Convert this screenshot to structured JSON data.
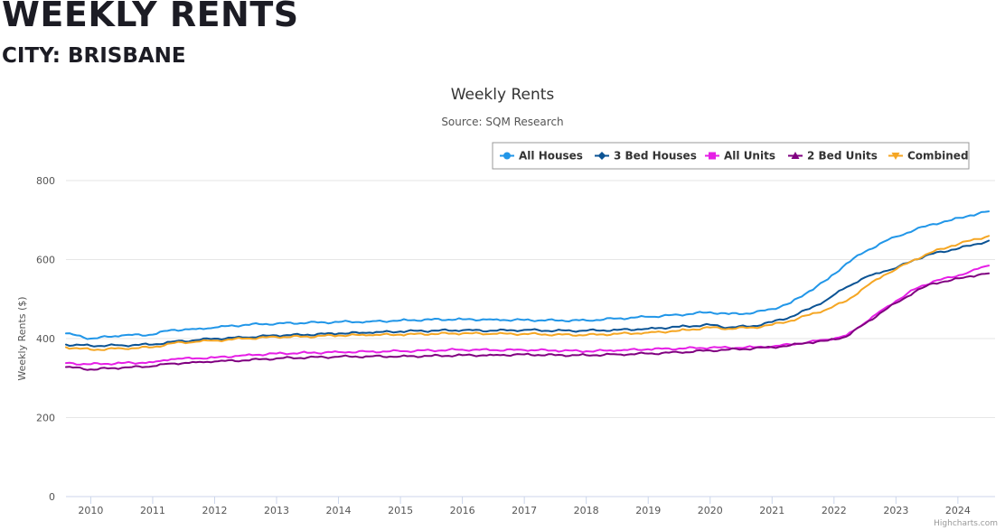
{
  "header": {
    "heading": "WEEKLY RENTS",
    "subheading": "CITY: BRISBANE"
  },
  "chart_data": {
    "type": "line",
    "title": "Weekly Rents",
    "subtitle": "Source: SQM Research",
    "ylabel": "Weekly Rents ($)",
    "xlabel": "",
    "ylim": [
      0,
      800
    ],
    "yticks": [
      0,
      200,
      400,
      600,
      800
    ],
    "xlim": [
      2009.6,
      2024.6
    ],
    "xticks": [
      "2010",
      "2011",
      "2012",
      "2013",
      "2014",
      "2015",
      "2016",
      "2017",
      "2018",
      "2019",
      "2020",
      "2021",
      "2022",
      "2023",
      "2024"
    ],
    "grid": true,
    "legend_position": "top-right",
    "credits": "Highcharts.com",
    "series": [
      {
        "name": "All Houses",
        "color": "#2196e8",
        "marker": "circle",
        "points": [
          [
            2009.6,
            413
          ],
          [
            2010,
            400
          ],
          [
            2010.5,
            408
          ],
          [
            2011,
            410
          ],
          [
            2011.3,
            422
          ],
          [
            2011.7,
            424
          ],
          [
            2012,
            428
          ],
          [
            2012.5,
            435
          ],
          [
            2013,
            438
          ],
          [
            2013.5,
            440
          ],
          [
            2014,
            442
          ],
          [
            2014.5,
            443
          ],
          [
            2015,
            446
          ],
          [
            2015.5,
            448
          ],
          [
            2016,
            449
          ],
          [
            2016.5,
            448
          ],
          [
            2017,
            447
          ],
          [
            2017.5,
            446
          ],
          [
            2018,
            446
          ],
          [
            2018.5,
            451
          ],
          [
            2019,
            455
          ],
          [
            2019.5,
            460
          ],
          [
            2020,
            467
          ],
          [
            2020.3,
            462
          ],
          [
            2020.7,
            465
          ],
          [
            2021,
            475
          ],
          [
            2021.3,
            490
          ],
          [
            2021.6,
            520
          ],
          [
            2021.9,
            550
          ],
          [
            2022.2,
            590
          ],
          [
            2022.5,
            620
          ],
          [
            2022.8,
            645
          ],
          [
            2023,
            658
          ],
          [
            2023.3,
            675
          ],
          [
            2023.6,
            690
          ],
          [
            2023.9,
            700
          ],
          [
            2024.2,
            712
          ],
          [
            2024.5,
            722
          ]
        ]
      },
      {
        "name": "3 Bed Houses",
        "color": "#0b5394",
        "marker": "diamond",
        "points": [
          [
            2009.6,
            385
          ],
          [
            2010,
            382
          ],
          [
            2010.5,
            383
          ],
          [
            2011,
            385
          ],
          [
            2011.3,
            392
          ],
          [
            2011.7,
            396
          ],
          [
            2012,
            400
          ],
          [
            2012.5,
            403
          ],
          [
            2013,
            408
          ],
          [
            2013.5,
            410
          ],
          [
            2014,
            413
          ],
          [
            2014.5,
            415
          ],
          [
            2015,
            418
          ],
          [
            2015.5,
            420
          ],
          [
            2016,
            421
          ],
          [
            2016.5,
            420
          ],
          [
            2017,
            422
          ],
          [
            2017.5,
            420
          ],
          [
            2018,
            420
          ],
          [
            2018.5,
            422
          ],
          [
            2019,
            425
          ],
          [
            2019.5,
            430
          ],
          [
            2020,
            435
          ],
          [
            2020.3,
            428
          ],
          [
            2020.7,
            432
          ],
          [
            2021,
            442
          ],
          [
            2021.3,
            455
          ],
          [
            2021.6,
            475
          ],
          [
            2021.9,
            500
          ],
          [
            2022.2,
            530
          ],
          [
            2022.5,
            555
          ],
          [
            2022.8,
            570
          ],
          [
            2023,
            578
          ],
          [
            2023.3,
            600
          ],
          [
            2023.6,
            615
          ],
          [
            2023.9,
            625
          ],
          [
            2024.2,
            635
          ],
          [
            2024.5,
            648
          ]
        ]
      },
      {
        "name": "All Units",
        "color": "#e61fe6",
        "marker": "square",
        "points": [
          [
            2009.6,
            338
          ],
          [
            2010,
            335
          ],
          [
            2010.5,
            338
          ],
          [
            2011,
            340
          ],
          [
            2011.3,
            348
          ],
          [
            2011.7,
            350
          ],
          [
            2012,
            352
          ],
          [
            2012.5,
            358
          ],
          [
            2013,
            362
          ],
          [
            2013.5,
            364
          ],
          [
            2014,
            366
          ],
          [
            2014.5,
            367
          ],
          [
            2015,
            368
          ],
          [
            2015.5,
            370
          ],
          [
            2016,
            372
          ],
          [
            2016.5,
            371
          ],
          [
            2017,
            371
          ],
          [
            2017.5,
            370
          ],
          [
            2018,
            368
          ],
          [
            2018.5,
            370
          ],
          [
            2019,
            373
          ],
          [
            2019.5,
            375
          ],
          [
            2020,
            377
          ],
          [
            2020.3,
            377
          ],
          [
            2020.7,
            378
          ],
          [
            2021,
            380
          ],
          [
            2021.3,
            385
          ],
          [
            2021.6,
            392
          ],
          [
            2021.9,
            397
          ],
          [
            2022.2,
            408
          ],
          [
            2022.5,
            440
          ],
          [
            2022.8,
            475
          ],
          [
            2023,
            495
          ],
          [
            2023.3,
            525
          ],
          [
            2023.6,
            545
          ],
          [
            2023.9,
            555
          ],
          [
            2024.2,
            570
          ],
          [
            2024.5,
            585
          ]
        ]
      },
      {
        "name": "2 Bed Units",
        "color": "#800080",
        "marker": "triangle",
        "points": [
          [
            2009.6,
            328
          ],
          [
            2010,
            322
          ],
          [
            2010.5,
            326
          ],
          [
            2011,
            330
          ],
          [
            2011.3,
            337
          ],
          [
            2011.7,
            340
          ],
          [
            2012,
            342
          ],
          [
            2012.5,
            345
          ],
          [
            2013,
            350
          ],
          [
            2013.5,
            352
          ],
          [
            2014,
            354
          ],
          [
            2014.5,
            355
          ],
          [
            2015,
            355
          ],
          [
            2015.5,
            356
          ],
          [
            2016,
            358
          ],
          [
            2016.5,
            358
          ],
          [
            2017,
            360
          ],
          [
            2017.5,
            358
          ],
          [
            2018,
            358
          ],
          [
            2018.5,
            360
          ],
          [
            2019,
            362
          ],
          [
            2019.5,
            365
          ],
          [
            2020,
            370
          ],
          [
            2020.3,
            372
          ],
          [
            2020.7,
            375
          ],
          [
            2021,
            378
          ],
          [
            2021.3,
            383
          ],
          [
            2021.6,
            390
          ],
          [
            2021.9,
            395
          ],
          [
            2022.2,
            405
          ],
          [
            2022.5,
            438
          ],
          [
            2022.8,
            470
          ],
          [
            2023,
            490
          ],
          [
            2023.3,
            518
          ],
          [
            2023.6,
            540
          ],
          [
            2023.9,
            548
          ],
          [
            2024.2,
            558
          ],
          [
            2024.5,
            565
          ]
        ]
      },
      {
        "name": "Combined",
        "color": "#f5a623",
        "marker": "triangle-down",
        "points": [
          [
            2009.6,
            378
          ],
          [
            2010,
            372
          ],
          [
            2010.5,
            375
          ],
          [
            2011,
            378
          ],
          [
            2011.3,
            388
          ],
          [
            2011.7,
            392
          ],
          [
            2012,
            395
          ],
          [
            2012.5,
            400
          ],
          [
            2013,
            404
          ],
          [
            2013.5,
            405
          ],
          [
            2014,
            408
          ],
          [
            2014.5,
            409
          ],
          [
            2015,
            410
          ],
          [
            2015.5,
            412
          ],
          [
            2016,
            413
          ],
          [
            2016.5,
            412
          ],
          [
            2017,
            412
          ],
          [
            2017.5,
            410
          ],
          [
            2018,
            409
          ],
          [
            2018.5,
            412
          ],
          [
            2019,
            415
          ],
          [
            2019.5,
            420
          ],
          [
            2020,
            428
          ],
          [
            2020.3,
            425
          ],
          [
            2020.7,
            428
          ],
          [
            2021,
            435
          ],
          [
            2021.3,
            445
          ],
          [
            2021.6,
            460
          ],
          [
            2021.9,
            475
          ],
          [
            2022.2,
            495
          ],
          [
            2022.5,
            530
          ],
          [
            2022.8,
            560
          ],
          [
            2023,
            575
          ],
          [
            2023.3,
            600
          ],
          [
            2023.6,
            620
          ],
          [
            2023.9,
            635
          ],
          [
            2024.2,
            648
          ],
          [
            2024.5,
            660
          ]
        ]
      }
    ]
  }
}
